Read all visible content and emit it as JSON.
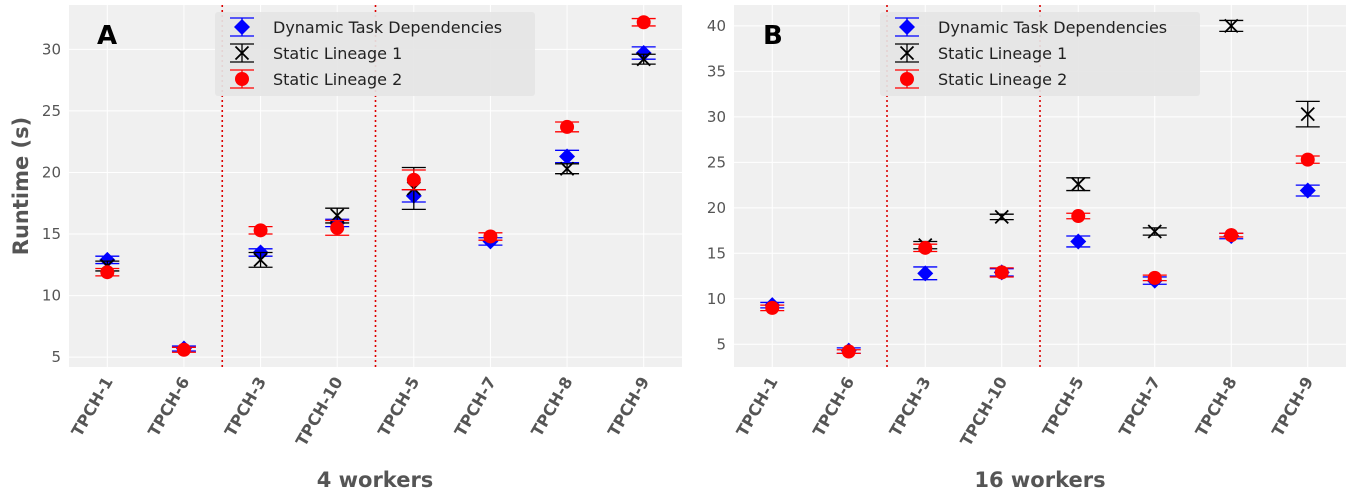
{
  "chart_data": [
    {
      "type": "scatter",
      "panel_label": "A",
      "xlabel": "4 workers",
      "ylabel": "Runtime (s)",
      "ylim": [
        4.2,
        33.6
      ],
      "yticks": [
        5,
        10,
        15,
        20,
        25,
        30
      ],
      "categories": [
        "TPCH-1",
        "TPCH-6",
        "TPCH-3",
        "TPCH-10",
        "TPCH-5",
        "TPCH-7",
        "TPCH-8",
        "TPCH-9"
      ],
      "group_separators_after": [
        1,
        3
      ],
      "grid": true,
      "legend_position": "top-center",
      "series": [
        {
          "name": "Dynamic Task Dependencies",
          "marker": "diamond",
          "color": "#0000ff",
          "values": [
            12.9,
            5.7,
            13.5,
            15.9,
            18.1,
            14.4,
            21.3,
            29.7
          ],
          "err": [
            0.3,
            0.2,
            0.3,
            0.3,
            0.5,
            0.3,
            0.5,
            0.5
          ]
        },
        {
          "name": "Static Lineage 1",
          "marker": "x",
          "color": "#000000",
          "values": [
            12.4,
            null,
            12.9,
            16.5,
            18.7,
            null,
            20.3,
            29.2
          ],
          "err": [
            0.4,
            null,
            0.6,
            0.6,
            1.7,
            null,
            0.4,
            0.4
          ]
        },
        {
          "name": "Static Lineage 2",
          "marker": "circle",
          "color": "#ff0000",
          "values": [
            11.9,
            5.6,
            15.3,
            15.5,
            19.4,
            14.8,
            23.7,
            32.2
          ],
          "err": [
            0.3,
            0.2,
            0.3,
            0.6,
            0.8,
            0.3,
            0.4,
            0.3
          ]
        }
      ]
    },
    {
      "type": "scatter",
      "panel_label": "B",
      "xlabel": "16 workers",
      "ylabel": "",
      "ylim": [
        2.5,
        42.3
      ],
      "yticks": [
        5,
        10,
        15,
        20,
        25,
        30,
        35,
        40
      ],
      "categories": [
        "TPCH-1",
        "TPCH-6",
        "TPCH-3",
        "TPCH-10",
        "TPCH-5",
        "TPCH-7",
        "TPCH-8",
        "TPCH-9"
      ],
      "group_separators_after": [
        1,
        3
      ],
      "grid": true,
      "legend_position": "top-center",
      "series": [
        {
          "name": "Dynamic Task Dependencies",
          "marker": "diamond",
          "color": "#0000ff",
          "values": [
            9.3,
            4.3,
            12.8,
            12.9,
            16.3,
            12.0,
            16.9,
            21.9
          ],
          "err": [
            0.3,
            0.3,
            0.7,
            0.4,
            0.6,
            0.4,
            0.3,
            0.6
          ]
        },
        {
          "name": "Static Lineage 1",
          "marker": "x",
          "color": "#000000",
          "values": [
            null,
            null,
            15.9,
            19.0,
            22.6,
            17.4,
            40.0,
            30.3
          ],
          "err": [
            null,
            null,
            0.4,
            0.3,
            0.7,
            0.4,
            0.6,
            1.4
          ]
        },
        {
          "name": "Static Lineage 2",
          "marker": "circle",
          "color": "#ff0000",
          "values": [
            9.0,
            4.2,
            15.6,
            12.9,
            19.1,
            12.3,
            17.0,
            25.3
          ],
          "err": [
            0.3,
            0.2,
            0.4,
            0.5,
            0.3,
            0.3,
            0.2,
            0.4
          ]
        }
      ]
    }
  ],
  "colors": {
    "panel_background": "#f0f0f0",
    "grid": "#ffffff",
    "separator": "#dd0000",
    "legend_background": "#e5e5e5"
  }
}
